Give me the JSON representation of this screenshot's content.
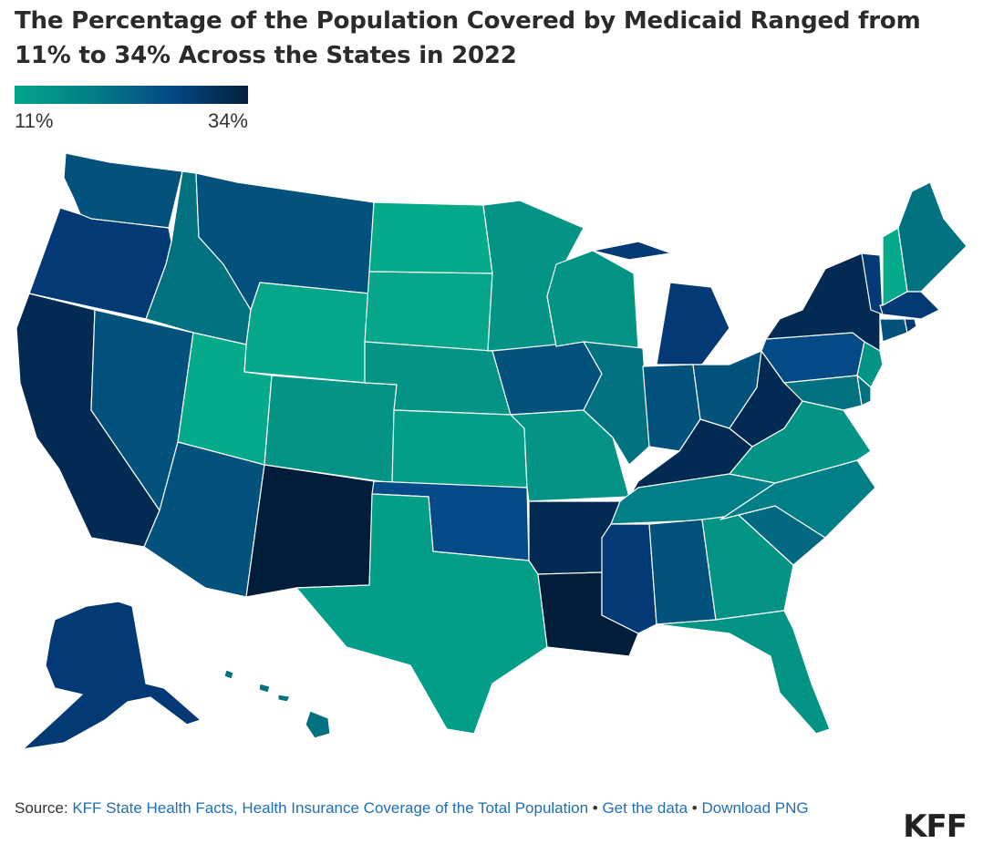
{
  "title": "The Percentage of the Population Covered by Medicaid Ranged from 11% to 34% Across the States in 2022",
  "legend": {
    "min_label": "11%",
    "max_label": "34%",
    "colors": [
      "#03a68a",
      "#027e86",
      "#034a86",
      "#03203d"
    ]
  },
  "source": {
    "prefix": "Source: ",
    "link_text": "KFF State Health Facts, Health Insurance Coverage of the Total Population",
    "sep1": " • ",
    "get_data": "Get the data",
    "sep2": " • ",
    "download": "Download PNG"
  },
  "logo": "KFF",
  "map_colors": {
    "WA": "#02527d",
    "OR": "#033a75",
    "CA": "#032a52",
    "NV": "#02527d",
    "ID": "#027280",
    "MT": "#02527d",
    "WY": "#05a689",
    "UT": "#05aa8a",
    "AZ": "#02527d",
    "CO": "#039485",
    "NM": "#021d3a",
    "ND": "#05aa8a",
    "SD": "#05a689",
    "NE": "#039485",
    "KS": "#039e87",
    "OK": "#034a86",
    "TX": "#039e87",
    "MN": "#039485",
    "IA": "#02527d",
    "MO": "#039485",
    "AR": "#032a52",
    "LA": "#021d3a",
    "WI": "#039485",
    "IL": "#027280",
    "MS": "#033a75",
    "MI": "#033a75",
    "IN": "#02527d",
    "OH": "#02527d",
    "KY": "#032a52",
    "TN": "#027e86",
    "AL": "#02527d",
    "GA": "#039485",
    "FL": "#039485",
    "SC": "#026981",
    "NC": "#027e86",
    "VA": "#039485",
    "WV": "#032a52",
    "PA": "#034a86",
    "NY": "#032a52",
    "VT": "#033a75",
    "NH": "#05aa8a",
    "ME": "#027280",
    "MA": "#033a75",
    "CT": "#02527d",
    "RI": "#033a75",
    "NJ": "#039485",
    "DE": "#027280",
    "MD": "#027280",
    "AK": "#033a75",
    "HI": "#027280"
  }
}
